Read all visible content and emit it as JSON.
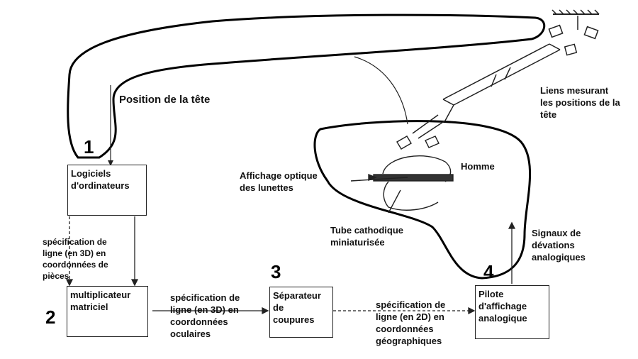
{
  "numbers": {
    "n1": "1",
    "n2": "2",
    "n3": "3",
    "n4": "4"
  },
  "boxes": {
    "logiciels": "Logiciels\nd'ordinateurs",
    "multiplicateur": "multiplicateur\nmatriciel",
    "separateur": "Séparateur\nde\ncoupures",
    "pilote": "Pilote\nd'affichage\nanalogique"
  },
  "labels": {
    "position_tete": "Position de la tête",
    "liens": "Liens mesurant\nles positions de la\ntête",
    "homme": "Homme",
    "affichage_optique": "Affichage optique\ndes lunettes",
    "tube": "Tube cathodique\nminiaturisée",
    "signaux": "Signaux de\ndévations\nanalogiques",
    "spec_3d_pieces": "spécification de\nligne (en 3D) en\ncoordonnées de\npièces",
    "spec_3d_oculaires": "spécification de\nligne (en 3D) en\ncoordonnées\noculaires",
    "spec_2d_geo": "spécification de\nligne (en 2D) en\ncoordonnées\ngéographiques"
  }
}
